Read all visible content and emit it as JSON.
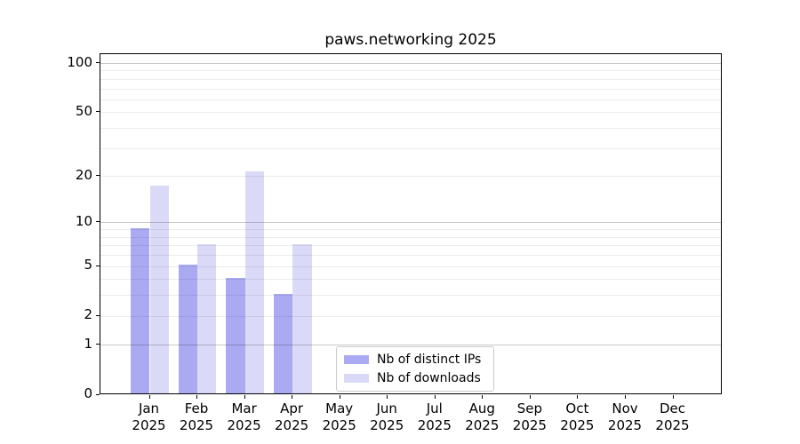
{
  "title": "paws.networking 2025",
  "colors": {
    "bar_distinct_ips": "#aaaaf2",
    "bar_downloads": "#dadaf8",
    "grid_minor": "#ececec",
    "grid_major": "#c9c9c9",
    "axis": "#000000"
  },
  "chart_data": {
    "type": "bar",
    "title": "paws.networking 2025",
    "x_months": [
      "Jan",
      "Feb",
      "Mar",
      "Apr",
      "May",
      "Jun",
      "Jul",
      "Aug",
      "Sep",
      "Oct",
      "Nov",
      "Dec"
    ],
    "x_year": "2025",
    "series": [
      {
        "name": "Nb of distinct IPs",
        "color": "#aaaaf2",
        "values": [
          9,
          5,
          4,
          3,
          0,
          0,
          0,
          0,
          0,
          0,
          0,
          0
        ]
      },
      {
        "name": "Nb of downloads",
        "color": "#dadaf8",
        "values": [
          17,
          7,
          21,
          7,
          0,
          0,
          0,
          0,
          0,
          0,
          0,
          0
        ]
      }
    ],
    "yscale": "log10(1+x)",
    "ylim": [
      0,
      113.3
    ],
    "yticks": [
      0,
      1,
      2,
      5,
      10,
      20,
      50,
      100
    ],
    "minor_gridlines": [
      2,
      3,
      4,
      5,
      6,
      7,
      8,
      9,
      20,
      30,
      40,
      50,
      60,
      70,
      80,
      90
    ],
    "major_gridlines": [
      1,
      10,
      100
    ],
    "grid": true,
    "legend_position": "lower center"
  }
}
